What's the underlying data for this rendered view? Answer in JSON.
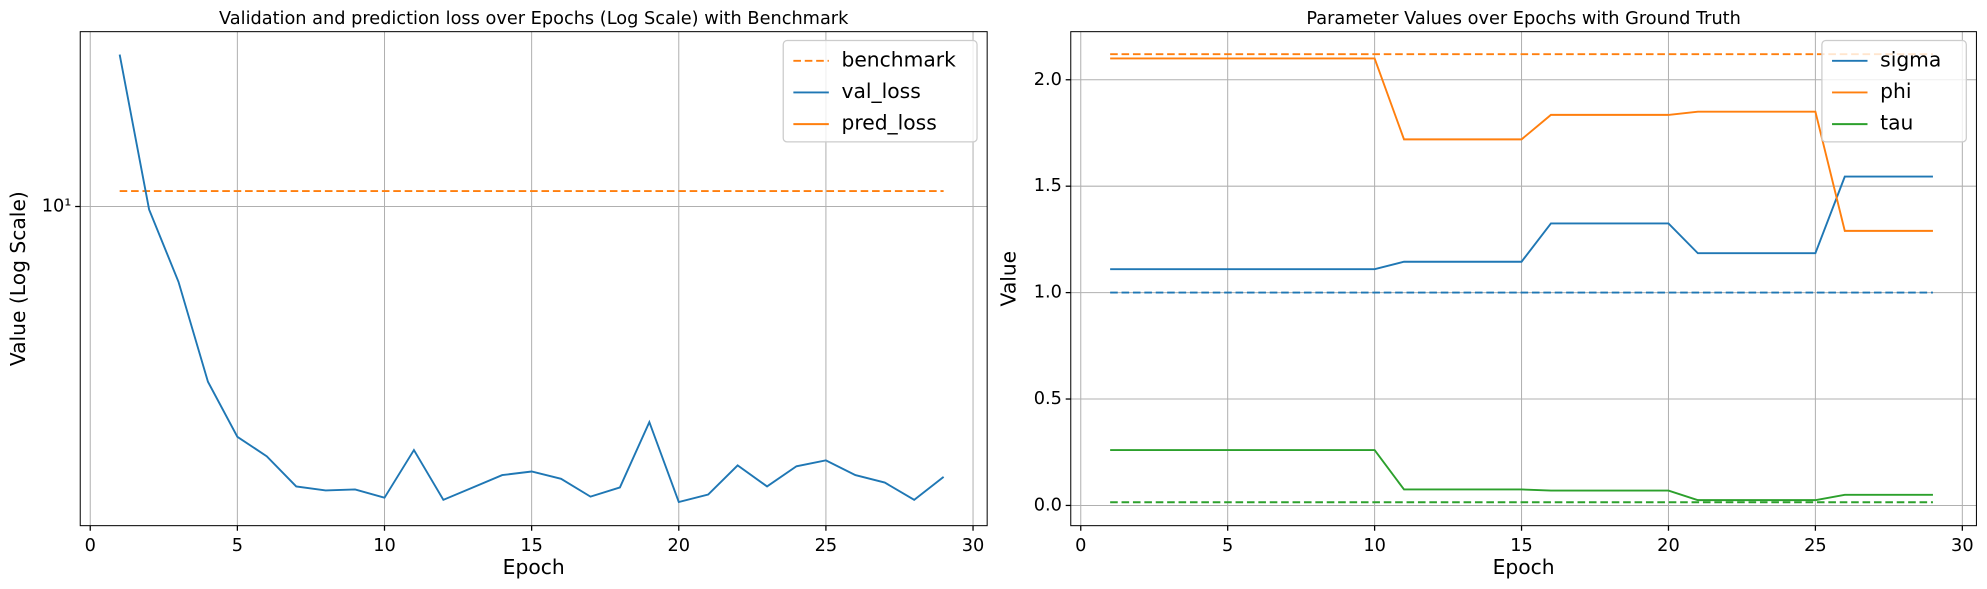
{
  "chart_data": [
    {
      "type": "line",
      "title": "Validation and prediction loss over Epochs (Log Scale) with Benchmark",
      "xlabel": "Epoch",
      "ylabel": "Value (Log Scale)",
      "yscale": "log",
      "grid": true,
      "legend": "upper right",
      "x": [
        1,
        2,
        3,
        4,
        5,
        6,
        7,
        8,
        9,
        10,
        11,
        12,
        13,
        14,
        15,
        16,
        17,
        18,
        19,
        20,
        21,
        22,
        23,
        24,
        25,
        26,
        27,
        28,
        29
      ],
      "xlim": [
        -0.34,
        30.48
      ],
      "xticks": [
        0,
        5,
        10,
        15,
        20,
        25,
        30
      ],
      "ylim": [
        1.15,
        32.7
      ],
      "yticks": [
        {
          "value": 10,
          "label": "10¹"
        }
      ],
      "series": [
        {
          "name": "benchmark",
          "color": "#ff7f0e",
          "dash": true,
          "values": [
            11.1,
            11.1,
            11.1,
            11.1,
            11.1,
            11.1,
            11.1,
            11.1,
            11.1,
            11.1,
            11.1,
            11.1,
            11.1,
            11.1,
            11.1,
            11.1,
            11.1,
            11.1,
            11.1,
            11.1,
            11.1,
            11.1,
            11.1,
            11.1,
            11.1,
            11.1,
            11.1,
            11.1,
            11.1
          ]
        },
        {
          "name": "val_loss",
          "color": "#1f77b4",
          "values": [
            28,
            9.8,
            6.0,
            3.05,
            2.1,
            1.84,
            1.5,
            1.46,
            1.47,
            1.39,
            1.92,
            1.37,
            1.49,
            1.62,
            1.66,
            1.58,
            1.4,
            1.49,
            2.32,
            1.35,
            1.42,
            1.73,
            1.5,
            1.72,
            1.79,
            1.62,
            1.54,
            1.37,
            1.6
          ]
        },
        {
          "name": "pred_loss",
          "color": "#ff7f0e",
          "values": [
            null,
            null,
            null,
            null,
            null,
            null,
            null,
            null,
            null,
            null,
            null,
            null,
            null,
            null,
            null,
            null,
            null,
            null,
            null,
            null,
            null,
            null,
            null,
            null,
            null,
            null,
            null,
            null,
            null
          ]
        }
      ]
    },
    {
      "type": "line",
      "title": "Parameter Values over Epochs with Ground Truth",
      "xlabel": "Epoch",
      "ylabel": "Value",
      "grid": true,
      "legend": "upper right",
      "x": [
        1,
        2,
        3,
        4,
        5,
        6,
        7,
        8,
        9,
        10,
        11,
        12,
        13,
        14,
        15,
        16,
        17,
        18,
        19,
        20,
        21,
        22,
        23,
        24,
        25,
        26,
        27,
        28,
        29
      ],
      "xlim": [
        -0.34,
        30.48
      ],
      "xticks": [
        0,
        5,
        10,
        15,
        20,
        25,
        30
      ],
      "ylim": [
        -0.095,
        2.226
      ],
      "yticks": [
        {
          "value": 0,
          "label": "0.0"
        },
        {
          "value": 0.5,
          "label": "0.5"
        },
        {
          "value": 1,
          "label": "1.0"
        },
        {
          "value": 1.5,
          "label": "1.5"
        },
        {
          "value": 2,
          "label": "2.0"
        }
      ],
      "series": [
        {
          "name": "sigma",
          "color": "#1f77b4",
          "values": [
            1.11,
            1.11,
            1.11,
            1.11,
            1.11,
            1.11,
            1.11,
            1.11,
            1.11,
            1.11,
            1.145,
            1.145,
            1.145,
            1.145,
            1.145,
            1.325,
            1.325,
            1.325,
            1.325,
            1.325,
            1.185,
            1.185,
            1.185,
            1.185,
            1.185,
            1.545,
            1.545,
            1.545,
            1.545
          ]
        },
        {
          "name": "phi",
          "color": "#ff7f0e",
          "values": [
            2.1,
            2.1,
            2.1,
            2.1,
            2.1,
            2.1,
            2.1,
            2.1,
            2.1,
            2.1,
            1.72,
            1.72,
            1.72,
            1.72,
            1.72,
            1.835,
            1.835,
            1.835,
            1.835,
            1.835,
            1.85,
            1.85,
            1.85,
            1.85,
            1.85,
            1.29,
            1.29,
            1.29,
            1.29
          ]
        },
        {
          "name": "tau",
          "color": "#2ca02c",
          "values": [
            0.26,
            0.26,
            0.26,
            0.26,
            0.26,
            0.26,
            0.26,
            0.26,
            0.26,
            0.26,
            0.075,
            0.075,
            0.075,
            0.075,
            0.075,
            0.07,
            0.07,
            0.07,
            0.07,
            0.07,
            0.025,
            0.025,
            0.025,
            0.025,
            0.025,
            0.05,
            0.05,
            0.05,
            0.05
          ]
        }
      ],
      "reference_lines": [
        {
          "color": "#1f77b4",
          "value": 1.0
        },
        {
          "color": "#ff7f0e",
          "value": 2.12
        },
        {
          "color": "#2ca02c",
          "value": 0.015
        }
      ]
    }
  ]
}
